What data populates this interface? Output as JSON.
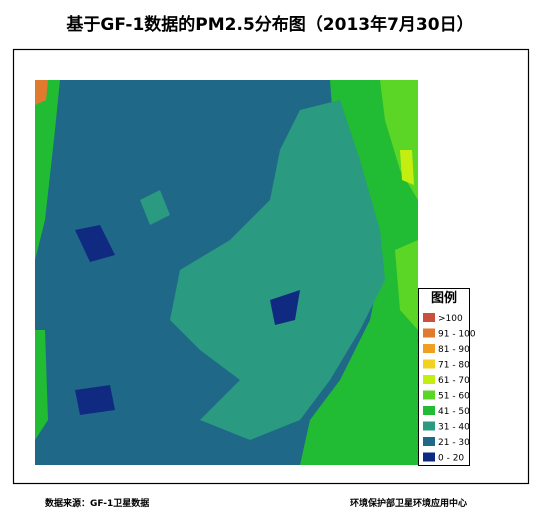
{
  "title": "基于GF-1数据的PM2.5分布图（2013年7月30日）",
  "legend": {
    "title": "图例",
    "items": [
      {
        "label": ">100",
        "color": "#c8503c"
      },
      {
        "label": "91 - 100",
        "color": "#e07a2e"
      },
      {
        "label": "81 - 90",
        "color": "#f0a020"
      },
      {
        "label": "71 - 80",
        "color": "#f2d21e"
      },
      {
        "label": "61 - 70",
        "color": "#c4ee10"
      },
      {
        "label": "51 - 60",
        "color": "#5cd626"
      },
      {
        "label": "41 - 50",
        "color": "#22bb34"
      },
      {
        "label": "31 - 40",
        "color": "#2a9a80"
      },
      {
        "label": "21 - 30",
        "color": "#1f6888"
      },
      {
        "label": "0 - 20",
        "color": "#102a82"
      }
    ]
  },
  "footer": {
    "source": "数据来源：GF-1卫星数据",
    "agency": "环境保护部卫星环境应用中心"
  }
}
